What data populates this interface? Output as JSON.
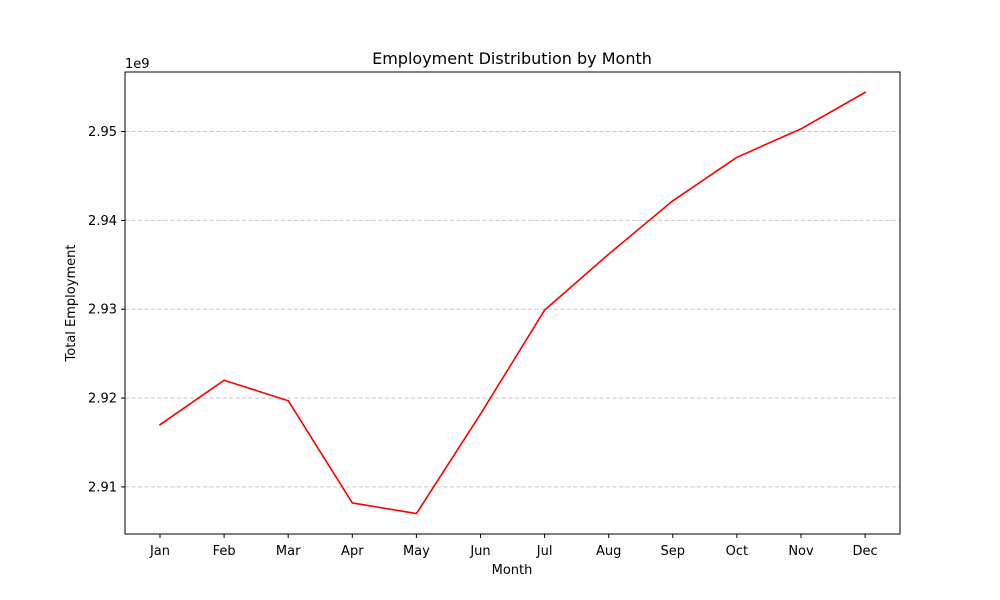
{
  "chart_data": {
    "type": "line",
    "title": "Employment Distribution by Month",
    "xlabel": "Month",
    "ylabel": "Total Employment",
    "y_offset_label": "1e9",
    "categories": [
      "Jan",
      "Feb",
      "Mar",
      "Apr",
      "May",
      "Jun",
      "Jul",
      "Aug",
      "Sep",
      "Oct",
      "Nov",
      "Dec"
    ],
    "series": [
      {
        "values": [
          2917000000,
          2922000000,
          2919700000,
          2908200000,
          2907000000,
          2918200000,
          2929900000,
          2936200000,
          2942200000,
          2947100000,
          2950300000,
          2954400000
        ],
        "color": "#ff0000"
      }
    ],
    "ylim": [
      2904700000,
      2956700000
    ],
    "yticks": [
      2910000000,
      2920000000,
      2930000000,
      2940000000,
      2950000000
    ],
    "ytick_labels": [
      "2.91",
      "2.92",
      "2.93",
      "2.94",
      "2.95"
    ],
    "grid": {
      "y": true,
      "x": false,
      "style": "dashed",
      "color": "#c8c8c8"
    },
    "legend": "none"
  }
}
